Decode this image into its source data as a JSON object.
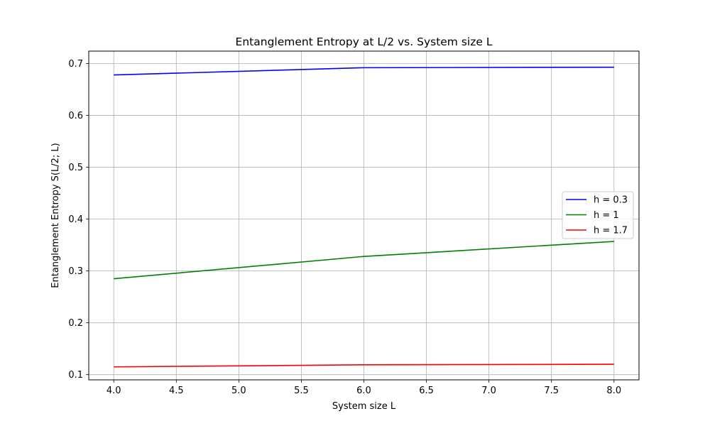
{
  "chart_data": {
    "type": "line",
    "title": "Entanglement Entropy at L/2 vs. System size L",
    "xlabel": "System size L",
    "ylabel": "Entanglement Entropy S(L/2; L)",
    "xlim": [
      3.8,
      8.2
    ],
    "ylim": [
      0.09,
      0.724
    ],
    "xticks": [
      "4.0",
      "4.5",
      "5.0",
      "5.5",
      "6.0",
      "6.5",
      "7.0",
      "7.5",
      "8.0"
    ],
    "yticks": [
      "0.1",
      "0.2",
      "0.3",
      "0.4",
      "0.5",
      "0.6",
      "0.7"
    ],
    "grid": true,
    "legend_position": "center-right",
    "x": [
      4,
      6,
      8
    ],
    "series": [
      {
        "name": "h = 0.3",
        "color": "#0000ff",
        "values": [
          0.678,
          0.692,
          0.693
        ]
      },
      {
        "name": "h = 1",
        "color": "#008000",
        "values": [
          0.285,
          0.328,
          0.357
        ]
      },
      {
        "name": "h = 1.7",
        "color": "#ff0000",
        "values": [
          0.115,
          0.119,
          0.12
        ]
      }
    ]
  }
}
